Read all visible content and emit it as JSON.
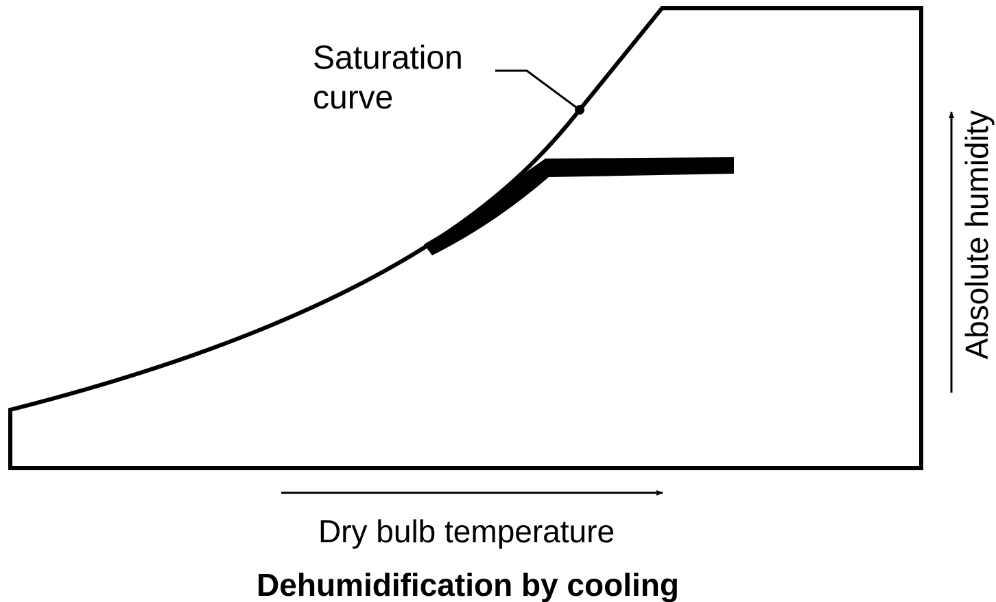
{
  "diagram": {
    "curve_label": [
      "Saturation",
      "curve"
    ],
    "x_axis_label": "Dry bulb temperature",
    "y_axis_label": "Absolute humidity",
    "caption": "Dehumidification by cooling"
  }
}
